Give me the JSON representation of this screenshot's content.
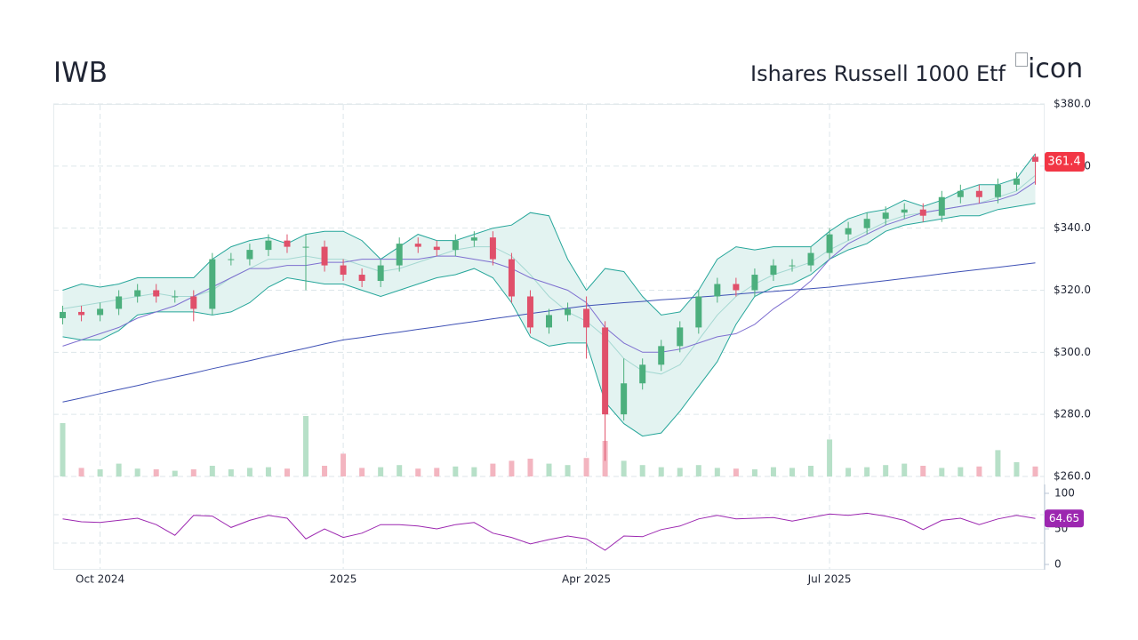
{
  "header": {
    "symbol": "IWB",
    "name": "Ishares Russell 1000 Etf",
    "icon_alt": "icon"
  },
  "chart_data": [
    {
      "type": "candlestick",
      "categories": [
        null,
        null,
        "Oct 2024",
        null,
        null,
        null,
        null,
        null,
        null,
        null,
        null,
        null,
        null,
        null,
        null,
        "2025",
        null,
        null,
        null,
        null,
        null,
        null,
        null,
        null,
        null,
        null,
        null,
        null,
        "Apr 2025",
        null,
        null,
        null,
        null,
        null,
        null,
        null,
        null,
        null,
        null,
        null,
        null,
        "Jul 2025",
        null,
        null,
        null,
        null,
        null,
        null,
        null,
        null,
        null,
        null,
        null
      ],
      "open": [
        311,
        313,
        312,
        314,
        318,
        320,
        318,
        318,
        314,
        330,
        330,
        333,
        336,
        334,
        334,
        328,
        325,
        323,
        328,
        335,
        334,
        333,
        336,
        337,
        330,
        318,
        308,
        312,
        314,
        308,
        280,
        290,
        296,
        302,
        308,
        318,
        322,
        320,
        325,
        328,
        328,
        332,
        338,
        340,
        343,
        345,
        346,
        344,
        350,
        352,
        350,
        354,
        363
      ],
      "high": [
        315,
        315,
        316,
        320,
        322,
        322,
        320,
        320,
        332,
        332,
        335,
        338,
        338,
        338,
        336,
        330,
        327,
        330,
        337,
        337,
        336,
        338,
        339,
        339,
        332,
        320,
        314,
        316,
        318,
        310,
        298,
        298,
        304,
        310,
        320,
        324,
        324,
        327,
        330,
        330,
        334,
        340,
        342,
        345,
        347,
        348,
        348,
        352,
        354,
        354,
        356,
        358,
        364
      ],
      "low": [
        309,
        310,
        310,
        312,
        316,
        316,
        316,
        310,
        312,
        328,
        328,
        331,
        332,
        320,
        326,
        323,
        321,
        321,
        326,
        332,
        331,
        331,
        334,
        328,
        316,
        306,
        306,
        310,
        298,
        265,
        278,
        288,
        294,
        300,
        306,
        316,
        318,
        318,
        323,
        326,
        326,
        330,
        336,
        338,
        341,
        343,
        342,
        342,
        348,
        348,
        348,
        352,
        354
      ],
      "close": [
        313,
        312,
        314,
        318,
        320,
        318,
        318,
        314,
        330,
        330,
        333,
        336,
        334,
        334,
        328,
        325,
        323,
        328,
        335,
        334,
        333,
        336,
        337,
        330,
        318,
        308,
        312,
        314,
        308,
        280,
        290,
        296,
        302,
        308,
        318,
        322,
        320,
        325,
        328,
        328,
        332,
        338,
        340,
        343,
        345,
        346,
        344,
        350,
        352,
        350,
        354,
        356,
        361.4
      ],
      "up_color": "#4caf7d",
      "down_color": "#e0506a",
      "ylim": [
        260,
        380
      ],
      "yticks": [
        {
          "value": 260,
          "label": "$260.0"
        },
        {
          "value": 280,
          "label": "$280.0"
        },
        {
          "value": 300,
          "label": "$300.0"
        },
        {
          "value": 320,
          "label": "$320.0"
        },
        {
          "value": 340,
          "label": "$340.0"
        },
        {
          "value": 360,
          "label": "$360.0"
        },
        {
          "value": 380,
          "label": "$380.0"
        }
      ],
      "grid": true,
      "last_label_color": "#f23645",
      "volume": {
        "values": [
          7.5,
          1.2,
          1,
          1.8,
          1.1,
          1,
          0.8,
          1,
          1.5,
          1,
          1.2,
          1.3,
          1.1,
          8.5,
          1.5,
          3.2,
          1.2,
          1.3,
          1.6,
          1.1,
          1.2,
          1.4,
          1.3,
          1.8,
          2.2,
          2.5,
          1.8,
          1.6,
          2.6,
          5,
          2.2,
          1.6,
          1.3,
          1.2,
          1.6,
          1.2,
          1.1,
          1,
          1.3,
          1.2,
          1.5,
          5.2,
          1.2,
          1.3,
          1.6,
          1.8,
          1.5,
          1.2,
          1.3,
          1.4,
          3.7,
          2,
          1.4
        ],
        "ylim": [
          0,
          10
        ],
        "up_color": "#b7e0c8",
        "down_color": "#f3b5c0"
      },
      "bands": {
        "upper": [
          320,
          322,
          321,
          322,
          324,
          324,
          324,
          324,
          330,
          334,
          336,
          337,
          335,
          338,
          339,
          339,
          336,
          330,
          334,
          338,
          336,
          336,
          338,
          340,
          341,
          345,
          344,
          330,
          320,
          327,
          326,
          318,
          312,
          313,
          320,
          330,
          334,
          333,
          334,
          334,
          334,
          339,
          343,
          345,
          346,
          349,
          347,
          349,
          352,
          354,
          354,
          356,
          364
        ],
        "middle": [
          314,
          315,
          316,
          317,
          318,
          319,
          318,
          318,
          320,
          324,
          327,
          330,
          330,
          331,
          330,
          330,
          328,
          326,
          327,
          329,
          331,
          333,
          334,
          334,
          331,
          325,
          318,
          313,
          310,
          305,
          298,
          294,
          293,
          296,
          304,
          312,
          318,
          322,
          325,
          327,
          329,
          333,
          336,
          339,
          342,
          344,
          345,
          346,
          347,
          348,
          350,
          352,
          357
        ],
        "lower": [
          305,
          304,
          304,
          307,
          312,
          313,
          313,
          313,
          312,
          313,
          316,
          321,
          324,
          323,
          322,
          322,
          320,
          318,
          320,
          322,
          324,
          325,
          327,
          324,
          316,
          305,
          302,
          303,
          303,
          284,
          277,
          273,
          274,
          281,
          289,
          297,
          309,
          318,
          321,
          322,
          325,
          330,
          333,
          335,
          339,
          341,
          342,
          343,
          344,
          344,
          346,
          347,
          348
        ],
        "color": "#26a69a",
        "middle_color": "#a5d8d2",
        "fill": "#e3f3f1"
      },
      "series": [
        {
          "color": "#7e6fd0",
          "values": [
            302,
            304,
            306,
            308,
            311,
            313,
            315,
            318,
            321,
            324,
            327,
            327,
            328,
            328,
            329,
            329,
            330,
            330,
            330,
            330,
            331,
            331,
            330,
            329,
            327,
            324,
            322,
            320,
            316,
            308,
            303,
            300,
            300,
            301,
            303,
            305,
            306,
            309,
            314,
            318,
            323,
            330,
            335,
            338,
            341,
            343,
            345,
            346,
            347,
            348,
            349,
            351,
            355
          ]
        },
        {
          "color": "#3f51b5",
          "values": [
            284,
            285.3,
            286.7,
            288,
            289.3,
            290.7,
            292,
            293.3,
            294.7,
            296,
            297.3,
            298.7,
            300,
            301.3,
            302.7,
            304,
            304.8,
            305.7,
            306.5,
            307.4,
            308.2,
            309.1,
            309.9,
            310.8,
            311.6,
            312.5,
            313.3,
            314.2,
            315,
            315.5,
            316,
            316.4,
            316.9,
            317.3,
            317.8,
            318.2,
            318.7,
            319.2,
            319.6,
            320.1,
            320.5,
            321,
            321.7,
            322.4,
            323.1,
            323.8,
            324.5,
            325.3,
            326,
            326.7,
            327.4,
            328.1,
            328.8
          ]
        }
      ]
    },
    {
      "type": "line",
      "values": [
        64,
        60,
        59,
        62,
        65,
        56,
        41,
        69,
        68,
        52,
        62,
        69,
        65,
        36,
        50,
        38,
        44,
        56,
        56,
        54,
        50,
        56,
        59,
        44,
        38,
        29,
        35,
        40,
        36,
        20,
        40,
        39,
        49,
        54,
        64,
        69,
        64,
        65,
        66,
        61,
        66,
        71,
        69,
        72,
        68,
        62,
        49,
        62,
        65,
        56,
        64,
        69,
        64.65
      ],
      "color": "#9c27b0",
      "ylim": [
        0,
        100
      ],
      "yticks": [
        0,
        50,
        100
      ],
      "levels": [
        30,
        70
      ],
      "grid": true
    }
  ]
}
